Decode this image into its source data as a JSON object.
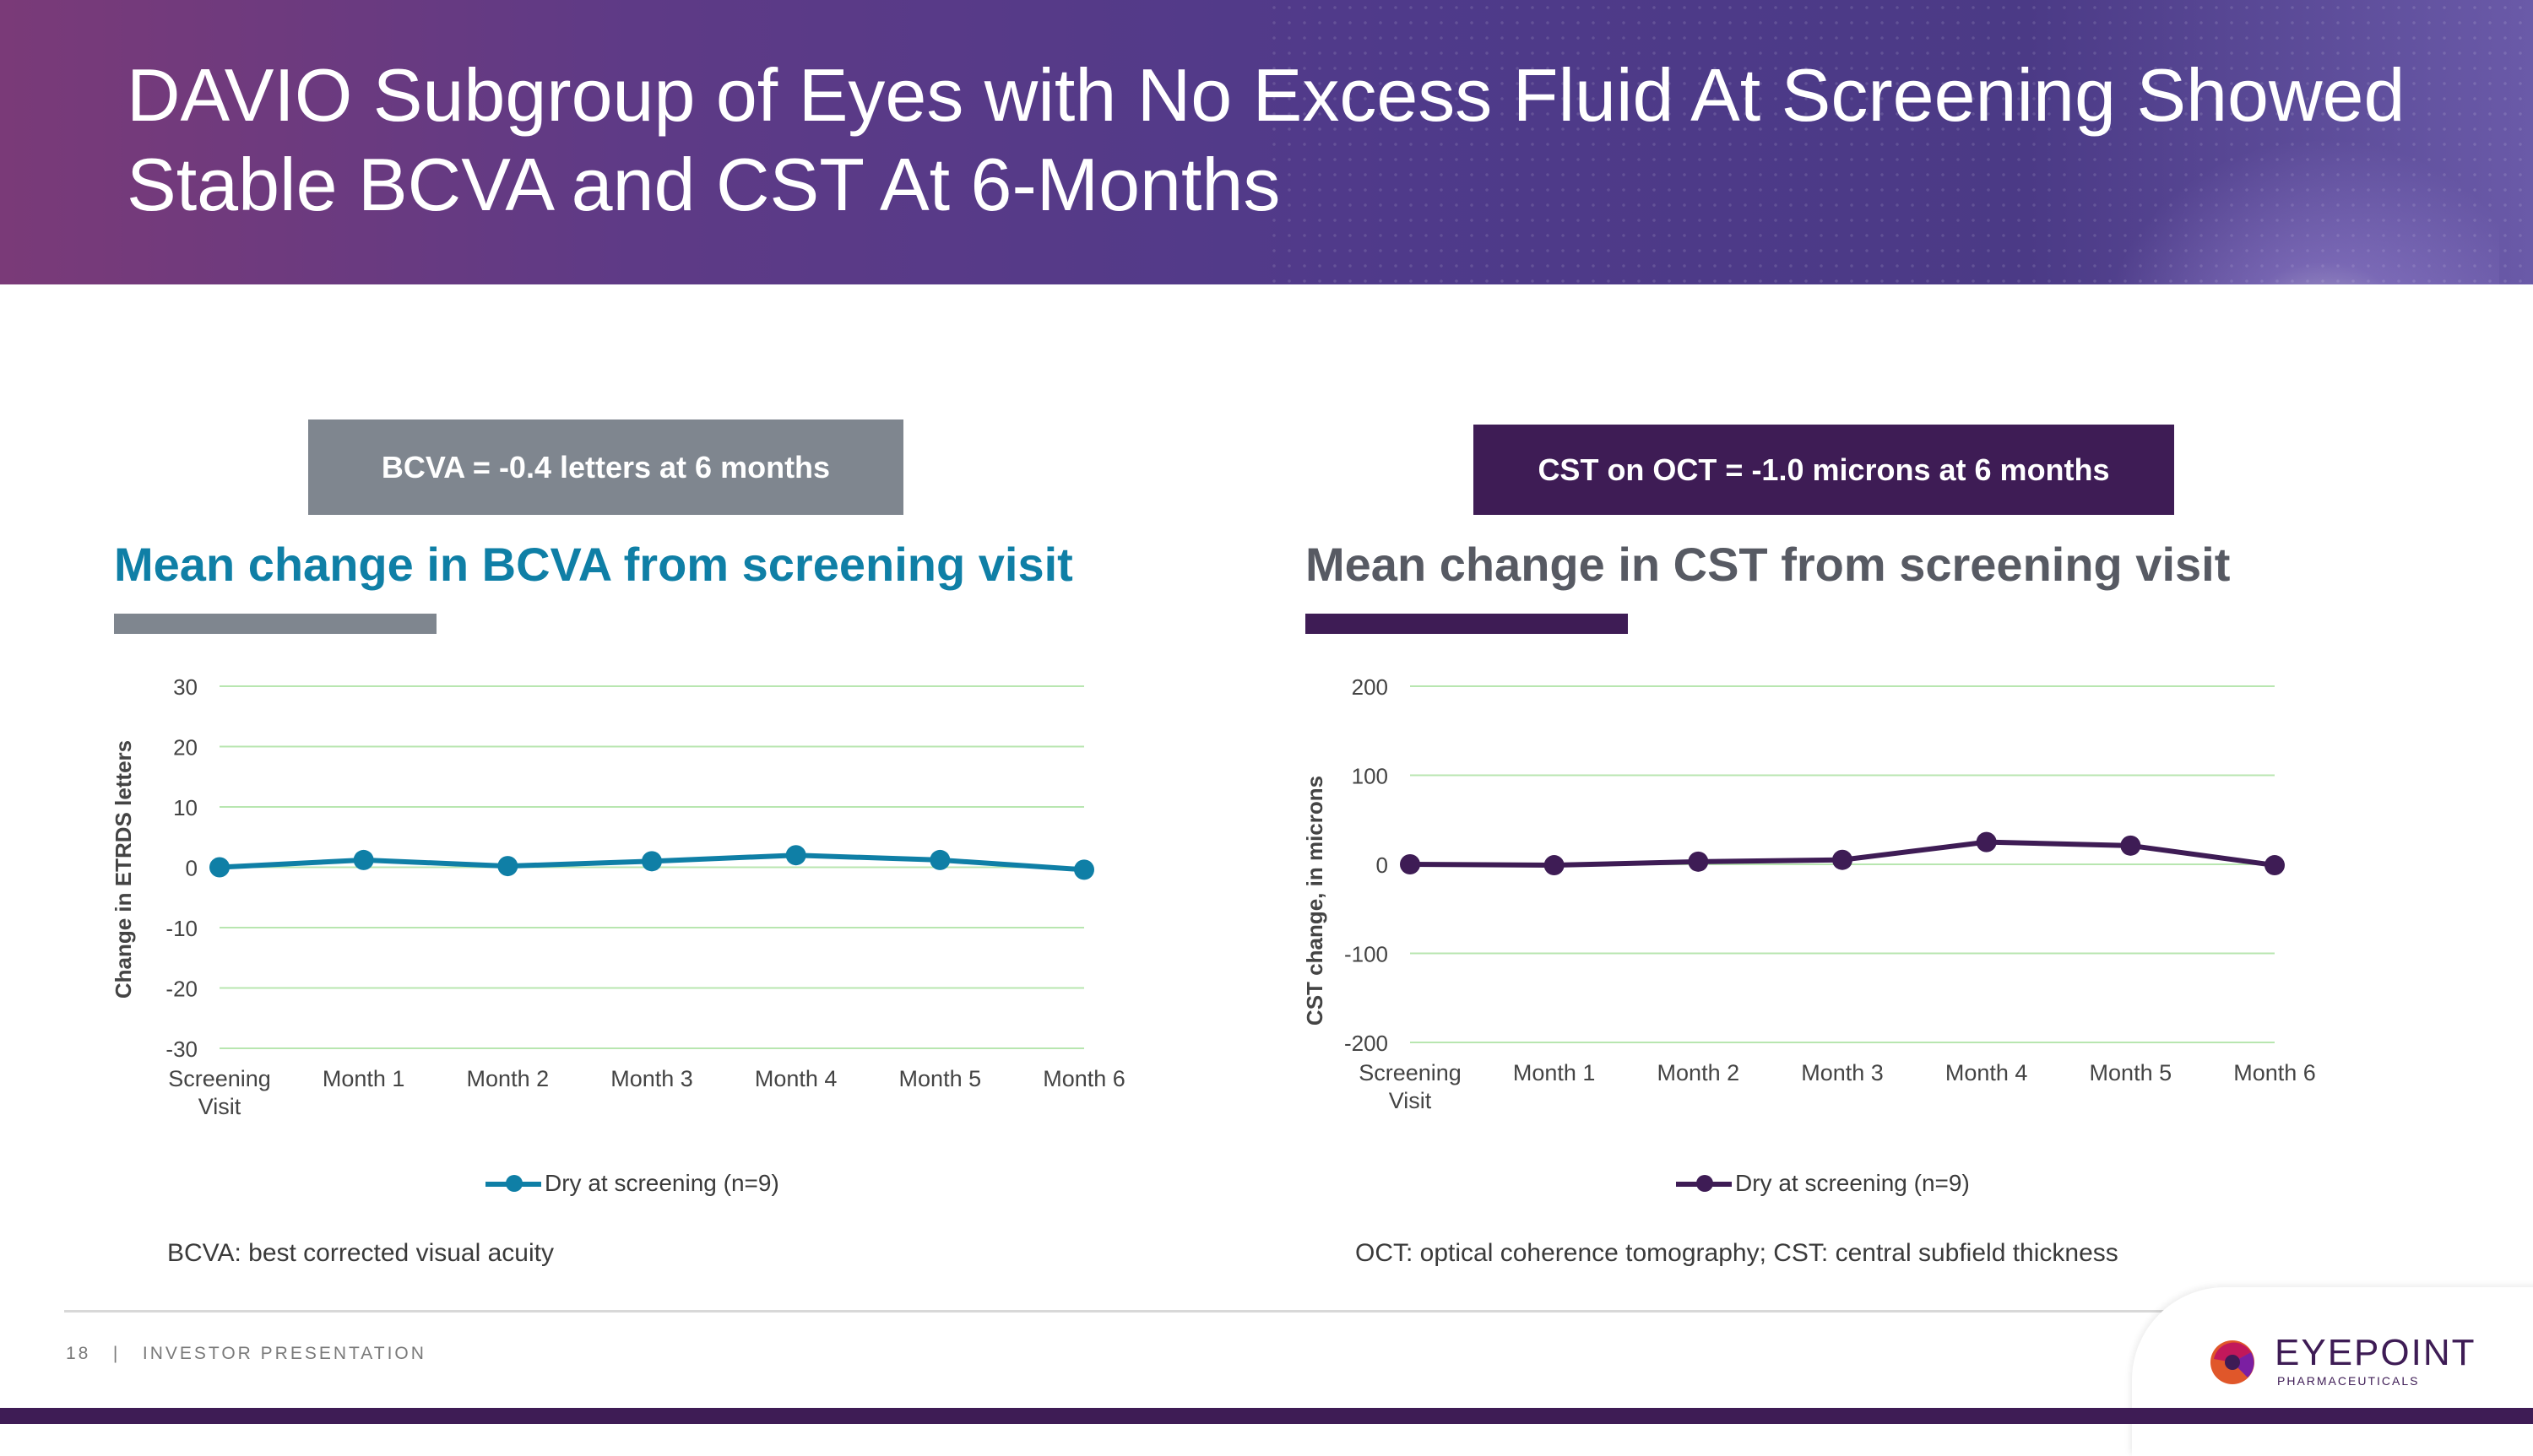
{
  "header": {
    "title_line1": "DAVIO Subgroup of Eyes with No Excess Fluid At Screening Showed",
    "title_line2": "Stable BCVA and CST At 6-Months"
  },
  "left_panel": {
    "kpi": "BCVA = -0.4 letters at 6 months",
    "title": "Mean change in BCVA from screening visit",
    "legend": "Dry at screening (n=9)",
    "note": "BCVA: best corrected visual acuity"
  },
  "right_panel": {
    "kpi": "CST on OCT = -1.0 microns at 6 months",
    "title": "Mean change in CST from screening visit",
    "legend": "Dry at screening (n=9)",
    "note": "OCT: optical coherence tomography; CST: central subfield thickness"
  },
  "colors": {
    "bcva_series": "#0f7fa6",
    "cst_series": "#3e1c55",
    "gridline": "#b8e6b0"
  },
  "chart_data": [
    {
      "type": "line",
      "title": "Mean change in BCVA from screening visit",
      "xlabel": "",
      "ylabel": "Change in ETRDS letters",
      "categories": [
        "Screening Visit",
        "Month 1",
        "Month 2",
        "Month 3",
        "Month 4",
        "Month 5",
        "Month 6"
      ],
      "series": [
        {
          "name": "Dry at screening (n=9)",
          "values": [
            0,
            1.2,
            0.2,
            1.0,
            2.0,
            1.2,
            -0.4
          ]
        }
      ],
      "ylim": [
        -30,
        30
      ],
      "yticks": [
        30,
        20,
        10,
        0,
        -10,
        -20,
        -30
      ],
      "grid": true,
      "legend": "bottom"
    },
    {
      "type": "line",
      "title": "Mean change in CST from screening visit",
      "xlabel": "",
      "ylabel": "CST change, in microns",
      "categories": [
        "Screening Visit",
        "Month 1",
        "Month 2",
        "Month 3",
        "Month 4",
        "Month 5",
        "Month 6"
      ],
      "series": [
        {
          "name": "Dry at screening (n=9)",
          "values": [
            0,
            -1,
            3,
            5,
            25,
            21,
            -1.0
          ]
        }
      ],
      "ylim": [
        -200,
        200
      ],
      "yticks": [
        200,
        100,
        0,
        -100,
        -200
      ],
      "grid": true,
      "legend": "bottom"
    }
  ],
  "footer": {
    "page": "18",
    "separator": "|",
    "label": "INVESTOR PRESENTATION"
  },
  "logo": {
    "name": "EYEPOINT",
    "sub": "PHARMACEUTICALS",
    "mark_icon": "eyepoint-logo-icon"
  }
}
